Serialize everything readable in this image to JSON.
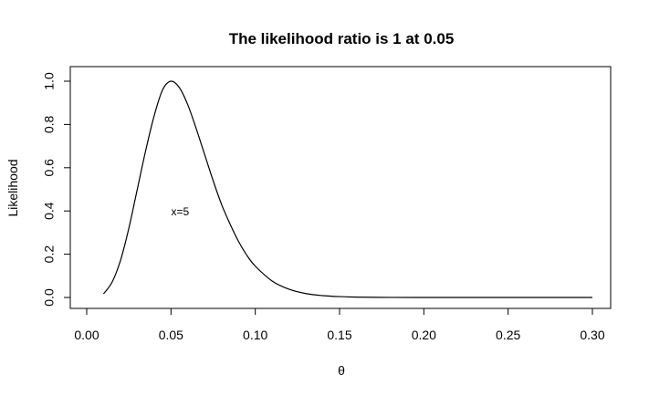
{
  "chart_data": {
    "type": "line",
    "title": "The likelihood ratio is 1 at 0.05",
    "xlabel": "θ",
    "ylabel": "Likelihood",
    "xlim": [
      0.0,
      0.3
    ],
    "ylim": [
      0.0,
      1.0
    ],
    "x_ticks": [
      "0.00",
      "0.05",
      "0.10",
      "0.15",
      "0.20",
      "0.25",
      "0.30"
    ],
    "y_ticks": [
      "0.0",
      "0.2",
      "0.4",
      "0.6",
      "0.8",
      "1.0"
    ],
    "grid": false,
    "annotations": [
      {
        "text": "x=5",
        "x": 0.05,
        "y": 0.4
      }
    ],
    "series": [
      {
        "x": [
          0.01,
          0.015,
          0.02,
          0.025,
          0.03,
          0.035,
          0.04,
          0.045,
          0.05,
          0.055,
          0.06,
          0.065,
          0.07,
          0.075,
          0.08,
          0.085,
          0.09,
          0.095,
          0.1,
          0.11,
          0.12,
          0.13,
          0.14,
          0.15,
          0.16,
          0.18,
          0.2,
          0.22,
          0.25,
          0.3
        ],
        "values": [
          0.017,
          0.07,
          0.17,
          0.32,
          0.5,
          0.68,
          0.84,
          0.96,
          1.0,
          0.97,
          0.89,
          0.78,
          0.66,
          0.54,
          0.43,
          0.34,
          0.26,
          0.195,
          0.145,
          0.076,
          0.038,
          0.018,
          0.0085,
          0.0039,
          0.0017,
          0.0003,
          5e-05,
          0.0,
          0.0,
          0.0
        ]
      }
    ]
  }
}
